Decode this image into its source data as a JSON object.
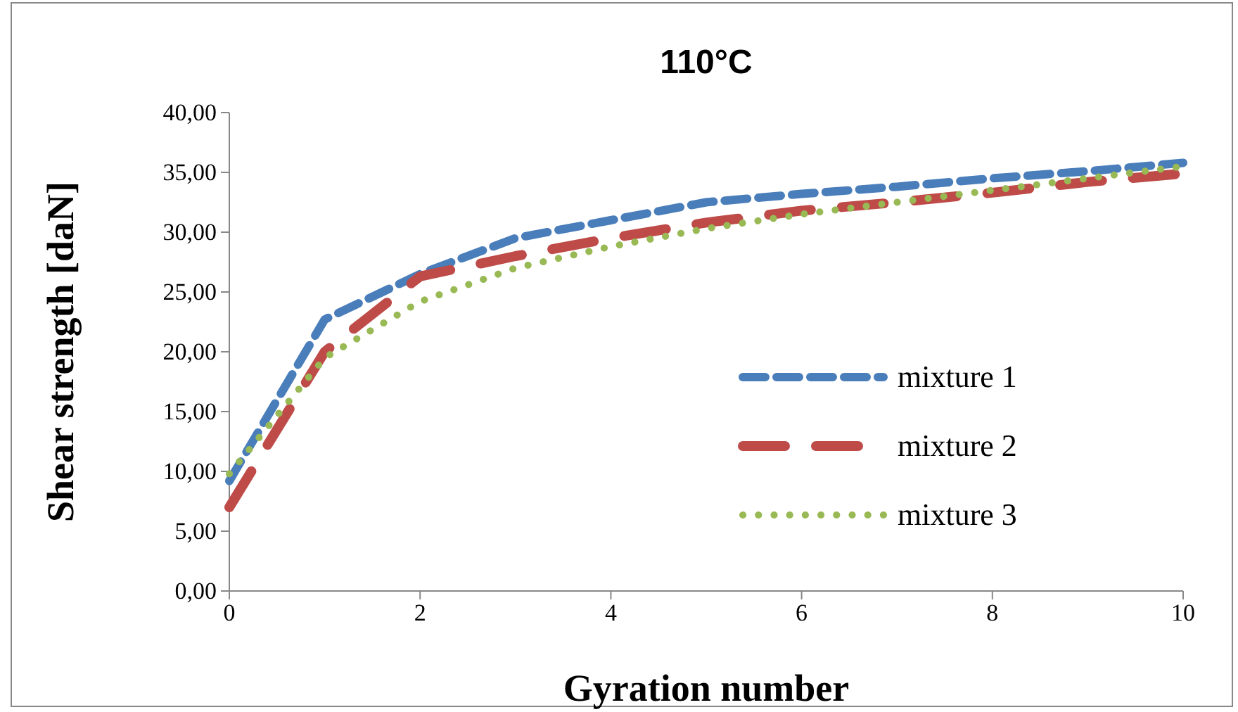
{
  "chart_data": {
    "type": "line",
    "title": "110°C",
    "xlabel": "Gyration number",
    "ylabel": "Shear strength [daN]",
    "x": [
      0,
      1,
      2,
      3,
      4,
      5,
      6,
      7,
      8,
      9,
      10
    ],
    "series": [
      {
        "name": "mixture 1",
        "color": "#4a7ebb",
        "line_style": "dashed",
        "values": [
          9.2,
          22.7,
          26.5,
          29.5,
          31,
          32.5,
          33.2,
          33.8,
          34.5,
          35.1,
          35.8
        ]
      },
      {
        "name": "mixture 2",
        "color": "#be4b48",
        "line_style": "longdash",
        "values": [
          7.0,
          20.0,
          26.3,
          28.0,
          29.5,
          30.8,
          31.8,
          32.5,
          33.3,
          34.2,
          34.9
        ]
      },
      {
        "name": "mixture 3",
        "color": "#98b954",
        "line_style": "dotted",
        "values": [
          9.8,
          19.5,
          24.2,
          27.0,
          28.8,
          30.3,
          31.5,
          32.5,
          33.5,
          34.5,
          35.5
        ]
      }
    ],
    "xlim": [
      0,
      10
    ],
    "xticks": [
      0,
      2,
      4,
      6,
      8,
      10
    ],
    "ylim": [
      0,
      40
    ],
    "yticks": [
      {
        "value": 0,
        "label": "0,00"
      },
      {
        "value": 5,
        "label": "5,00"
      },
      {
        "value": 10,
        "label": "10,00"
      },
      {
        "value": 15,
        "label": "15,00"
      },
      {
        "value": 20,
        "label": "20,00"
      },
      {
        "value": 25,
        "label": "25,00"
      },
      {
        "value": 30,
        "label": "30,00"
      },
      {
        "value": 35,
        "label": "35,00"
      },
      {
        "value": 40,
        "label": "40,00"
      }
    ],
    "grid": false,
    "legend": "right",
    "marker": "none"
  }
}
